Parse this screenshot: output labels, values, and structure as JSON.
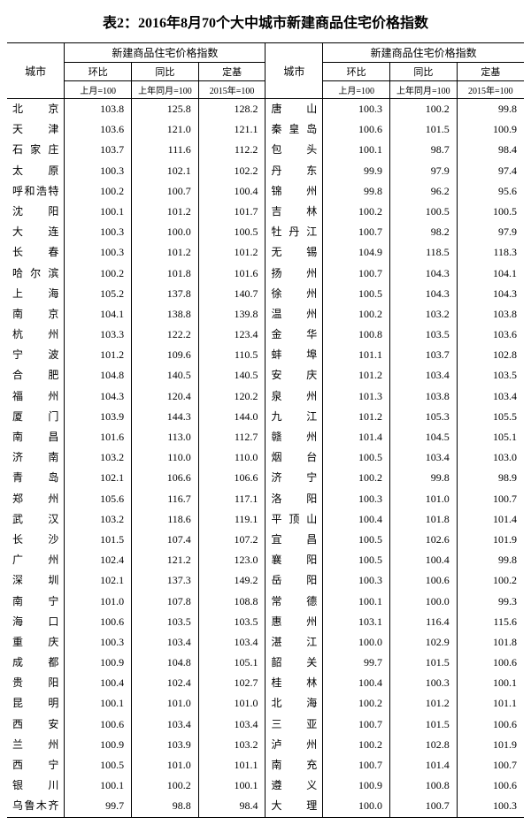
{
  "title": "表2：2016年8月70个大中城市新建商品住宅价格指数",
  "headers": {
    "city": "城市",
    "group": "新建商品住宅价格指数",
    "mom": "环比",
    "yoy": "同比",
    "base": "定基",
    "mom_sub": "上月=100",
    "yoy_sub": "上年同月=100",
    "base_sub": "2015年=100"
  },
  "left": [
    {
      "c": "北京",
      "m": "103.8",
      "y": "125.8",
      "b": "128.2"
    },
    {
      "c": "天津",
      "m": "103.6",
      "y": "121.0",
      "b": "121.1"
    },
    {
      "c": "石家庄",
      "m": "103.7",
      "y": "111.6",
      "b": "112.2"
    },
    {
      "c": "太原",
      "m": "100.3",
      "y": "102.1",
      "b": "102.2"
    },
    {
      "c": "呼和浩特",
      "m": "100.2",
      "y": "100.7",
      "b": "100.4"
    },
    {
      "c": "沈阳",
      "m": "100.1",
      "y": "101.2",
      "b": "101.7"
    },
    {
      "c": "大连",
      "m": "100.3",
      "y": "100.0",
      "b": "100.5"
    },
    {
      "c": "长春",
      "m": "100.3",
      "y": "101.2",
      "b": "101.2"
    },
    {
      "c": "哈尔滨",
      "m": "100.2",
      "y": "101.8",
      "b": "101.6"
    },
    {
      "c": "上海",
      "m": "105.2",
      "y": "137.8",
      "b": "140.7"
    },
    {
      "c": "南京",
      "m": "104.1",
      "y": "138.8",
      "b": "139.8"
    },
    {
      "c": "杭州",
      "m": "103.3",
      "y": "122.2",
      "b": "123.4"
    },
    {
      "c": "宁波",
      "m": "101.2",
      "y": "109.6",
      "b": "110.5"
    },
    {
      "c": "合肥",
      "m": "104.8",
      "y": "140.5",
      "b": "140.5"
    },
    {
      "c": "福州",
      "m": "104.3",
      "y": "120.4",
      "b": "120.2"
    },
    {
      "c": "厦门",
      "m": "103.9",
      "y": "144.3",
      "b": "144.0"
    },
    {
      "c": "南昌",
      "m": "101.6",
      "y": "113.0",
      "b": "112.7"
    },
    {
      "c": "济南",
      "m": "103.2",
      "y": "110.0",
      "b": "110.0"
    },
    {
      "c": "青岛",
      "m": "102.1",
      "y": "106.6",
      "b": "106.6"
    },
    {
      "c": "郑州",
      "m": "105.6",
      "y": "116.7",
      "b": "117.1"
    },
    {
      "c": "武汉",
      "m": "103.2",
      "y": "118.6",
      "b": "119.1"
    },
    {
      "c": "长沙",
      "m": "101.5",
      "y": "107.4",
      "b": "107.2"
    },
    {
      "c": "广州",
      "m": "102.4",
      "y": "121.2",
      "b": "123.0"
    },
    {
      "c": "深圳",
      "m": "102.1",
      "y": "137.3",
      "b": "149.2"
    },
    {
      "c": "南宁",
      "m": "101.0",
      "y": "107.8",
      "b": "108.8"
    },
    {
      "c": "海口",
      "m": "100.6",
      "y": "103.5",
      "b": "103.5"
    },
    {
      "c": "重庆",
      "m": "100.3",
      "y": "103.4",
      "b": "103.4"
    },
    {
      "c": "成都",
      "m": "100.9",
      "y": "104.8",
      "b": "105.1"
    },
    {
      "c": "贵阳",
      "m": "100.4",
      "y": "102.4",
      "b": "102.7"
    },
    {
      "c": "昆明",
      "m": "100.1",
      "y": "101.0",
      "b": "101.0"
    },
    {
      "c": "西安",
      "m": "100.6",
      "y": "103.4",
      "b": "103.4"
    },
    {
      "c": "兰州",
      "m": "100.9",
      "y": "103.9",
      "b": "103.2"
    },
    {
      "c": "西宁",
      "m": "100.5",
      "y": "101.0",
      "b": "101.1"
    },
    {
      "c": "银川",
      "m": "100.1",
      "y": "100.2",
      "b": "100.1"
    },
    {
      "c": "乌鲁木齐",
      "m": "99.7",
      "y": "98.8",
      "b": "98.4"
    }
  ],
  "right": [
    {
      "c": "唐山",
      "m": "100.3",
      "y": "100.2",
      "b": "99.8"
    },
    {
      "c": "秦皇岛",
      "m": "100.6",
      "y": "101.5",
      "b": "100.9"
    },
    {
      "c": "包头",
      "m": "100.1",
      "y": "98.7",
      "b": "98.4"
    },
    {
      "c": "丹东",
      "m": "99.9",
      "y": "97.9",
      "b": "97.4"
    },
    {
      "c": "锦州",
      "m": "99.8",
      "y": "96.2",
      "b": "95.6"
    },
    {
      "c": "吉林",
      "m": "100.2",
      "y": "100.5",
      "b": "100.5"
    },
    {
      "c": "牡丹江",
      "m": "100.7",
      "y": "98.2",
      "b": "97.9"
    },
    {
      "c": "无锡",
      "m": "104.9",
      "y": "118.5",
      "b": "118.3"
    },
    {
      "c": "扬州",
      "m": "100.7",
      "y": "104.3",
      "b": "104.1"
    },
    {
      "c": "徐州",
      "m": "100.5",
      "y": "104.3",
      "b": "104.3"
    },
    {
      "c": "温州",
      "m": "100.2",
      "y": "103.2",
      "b": "103.8"
    },
    {
      "c": "金华",
      "m": "100.8",
      "y": "103.5",
      "b": "103.6"
    },
    {
      "c": "蚌埠",
      "m": "101.1",
      "y": "103.7",
      "b": "102.8"
    },
    {
      "c": "安庆",
      "m": "101.2",
      "y": "103.4",
      "b": "103.5"
    },
    {
      "c": "泉州",
      "m": "101.3",
      "y": "103.8",
      "b": "103.4"
    },
    {
      "c": "九江",
      "m": "101.2",
      "y": "105.3",
      "b": "105.5"
    },
    {
      "c": "赣州",
      "m": "101.4",
      "y": "104.5",
      "b": "105.1"
    },
    {
      "c": "烟台",
      "m": "100.5",
      "y": "103.4",
      "b": "103.0"
    },
    {
      "c": "济宁",
      "m": "100.2",
      "y": "99.8",
      "b": "98.9"
    },
    {
      "c": "洛阳",
      "m": "100.3",
      "y": "101.0",
      "b": "100.7"
    },
    {
      "c": "平顶山",
      "m": "100.4",
      "y": "101.8",
      "b": "101.4"
    },
    {
      "c": "宜昌",
      "m": "100.5",
      "y": "102.6",
      "b": "101.9"
    },
    {
      "c": "襄阳",
      "m": "100.5",
      "y": "100.4",
      "b": "99.8"
    },
    {
      "c": "岳阳",
      "m": "100.3",
      "y": "100.6",
      "b": "100.2"
    },
    {
      "c": "常德",
      "m": "100.1",
      "y": "100.0",
      "b": "99.3"
    },
    {
      "c": "惠州",
      "m": "103.1",
      "y": "116.4",
      "b": "115.6"
    },
    {
      "c": "湛江",
      "m": "100.0",
      "y": "102.9",
      "b": "101.8"
    },
    {
      "c": "韶关",
      "m": "99.7",
      "y": "101.5",
      "b": "100.6"
    },
    {
      "c": "桂林",
      "m": "100.4",
      "y": "100.3",
      "b": "100.1"
    },
    {
      "c": "北海",
      "m": "100.2",
      "y": "101.2",
      "b": "101.1"
    },
    {
      "c": "三亚",
      "m": "100.7",
      "y": "101.5",
      "b": "100.6"
    },
    {
      "c": "泸州",
      "m": "100.2",
      "y": "102.8",
      "b": "101.9"
    },
    {
      "c": "南充",
      "m": "100.7",
      "y": "101.4",
      "b": "100.7"
    },
    {
      "c": "遵义",
      "m": "100.9",
      "y": "100.8",
      "b": "100.6"
    },
    {
      "c": "大理",
      "m": "100.0",
      "y": "100.7",
      "b": "100.3"
    }
  ]
}
